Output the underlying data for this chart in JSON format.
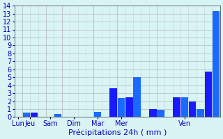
{
  "xlabel": "Précipitations 24h ( mm )",
  "ylim": [
    0,
    14
  ],
  "yticks": [
    0,
    1,
    2,
    3,
    4,
    5,
    6,
    7,
    8,
    9,
    10,
    11,
    12,
    13,
    14
  ],
  "background_color": "#d8f4f4",
  "grid_color": "#bbbbbb",
  "bar_values": [
    0,
    0.55,
    0.55,
    0,
    0,
    0.35,
    0,
    0,
    0,
    0,
    0.65,
    0,
    3.6,
    2.4,
    2.5,
    5.0,
    0,
    1.0,
    0.9,
    0,
    2.5,
    2.5,
    2.0,
    1.0,
    5.7,
    13.3
  ],
  "bar_colors": [
    "#1a1aff",
    "#1a6aff",
    "#1a1aff",
    "#1a1aff",
    "#1a1aff",
    "#1a6aff",
    "#1a1aff",
    "#1a1aff",
    "#1a1aff",
    "#1a1aff",
    "#1a6aff",
    "#1a1aff",
    "#1a1aff",
    "#1a6aff",
    "#1a1aff",
    "#1a6aff",
    "#1a1aff",
    "#1a1aff",
    "#1a6aff",
    "#1a1aff",
    "#1a1aff",
    "#1a6aff",
    "#1a1aff",
    "#1a6aff",
    "#1a1aff",
    "#1a6aff"
  ],
  "n_bars": 26,
  "day_labels": [
    "Lun",
    "Jeu",
    "Sam",
    "Dim",
    "Mar",
    "Mer",
    "Ven"
  ],
  "day_label_bar_indices": [
    0,
    1.5,
    4,
    7,
    10,
    13,
    21
  ],
  "text_color": "#0000bb",
  "xlabel_fontsize": 8,
  "tick_fontsize": 7
}
